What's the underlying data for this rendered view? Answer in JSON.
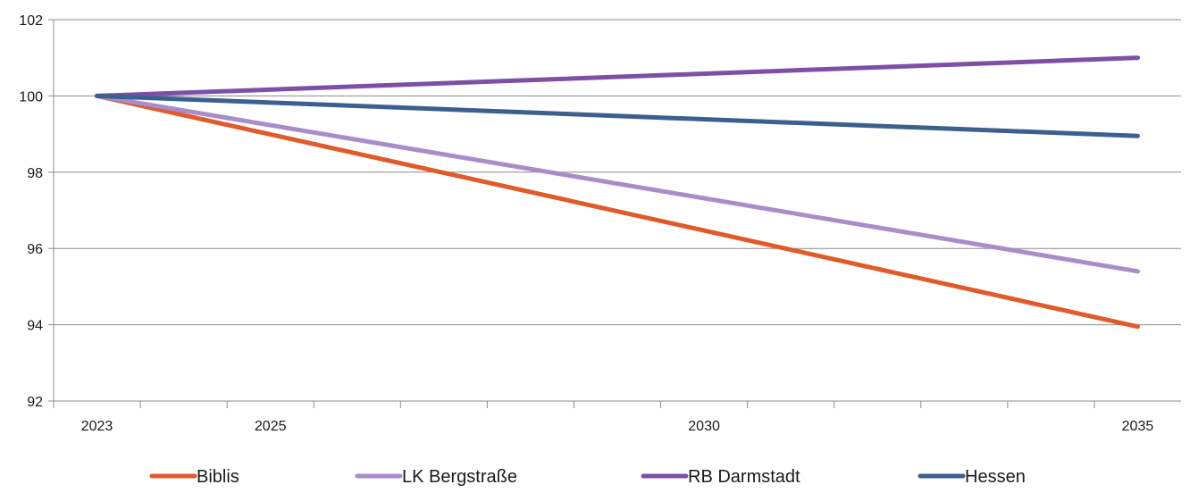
{
  "chart_data": {
    "type": "line",
    "title": "",
    "xlabel": "",
    "ylabel": "",
    "x": [
      2023,
      2035
    ],
    "x_ticks": [
      2023,
      2025,
      2030,
      2035
    ],
    "xlim": [
      2022.5,
      2035.5
    ],
    "ylim": [
      92,
      102
    ],
    "y_ticks": [
      92,
      94,
      96,
      98,
      100,
      102
    ],
    "grid": true,
    "legend_position": "bottom",
    "series": [
      {
        "name": "Biblis",
        "color": "#e05a2b",
        "values": [
          100,
          93.95
        ]
      },
      {
        "name": "LK Bergstraße",
        "color": "#a98dc9",
        "values": [
          100,
          95.4
        ]
      },
      {
        "name": "RB Darmstadt",
        "color": "#7d4fa7",
        "values": [
          100,
          101.0
        ]
      },
      {
        "name": "Hessen",
        "color": "#3b5f8f",
        "values": [
          100,
          98.95
        ]
      }
    ]
  }
}
